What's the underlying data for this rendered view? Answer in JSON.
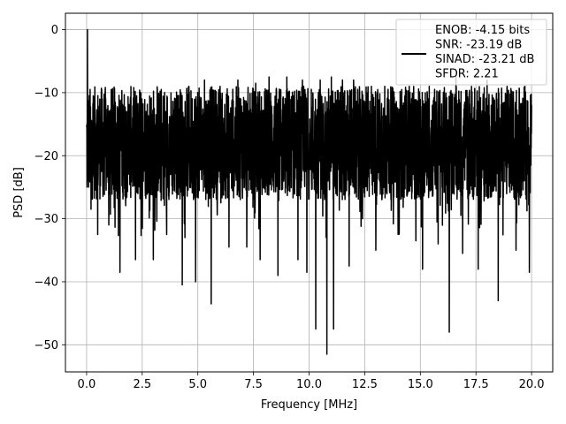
{
  "chart_data": {
    "type": "line",
    "xlabel": "Frequency [MHz]",
    "ylabel": "PSD [dB]",
    "xlim": [
      -0.95,
      20.95
    ],
    "ylim": [
      -54.3,
      2.6
    ],
    "xticks": [
      0.0,
      2.5,
      5.0,
      7.5,
      10.0,
      12.5,
      15.0,
      17.5,
      20.0
    ],
    "xtick_labels": [
      "0.0",
      "2.5",
      "5.0",
      "7.5",
      "10.0",
      "12.5",
      "15.0",
      "17.5",
      "20.0"
    ],
    "yticks": [
      0,
      -10,
      -20,
      -30,
      -40,
      -50
    ],
    "ytick_labels": [
      "0",
      "−10",
      "−20",
      "−30",
      "−40",
      "−50"
    ],
    "grid": true,
    "legend_position": "top-right",
    "line_color": "#000000",
    "series": [
      {
        "name": "ENOB: -4.15 bits\nSNR: -23.19 dB\nSINAD: -23.21 dB\nSFDR: 2.21",
        "x_range": [
          0,
          20
        ],
        "noise_floor_approx": -18,
        "points": [
          [
            0.0,
            -15.5
          ],
          [
            0.02,
            -25.0
          ],
          [
            0.04,
            0.0
          ],
          [
            0.06,
            -24.0
          ],
          [
            0.1,
            -12.0
          ],
          [
            0.2,
            -28.5
          ],
          [
            0.3,
            -10.5
          ],
          [
            0.5,
            -32.5
          ],
          [
            0.7,
            -11.0
          ],
          [
            1.0,
            -31.0
          ],
          [
            1.3,
            -12.0
          ],
          [
            1.5,
            -38.5
          ],
          [
            1.8,
            -13.0
          ],
          [
            2.2,
            -36.5
          ],
          [
            2.5,
            -13.0
          ],
          [
            3.0,
            -36.5
          ],
          [
            3.3,
            -12.0
          ],
          [
            3.6,
            -32.5
          ],
          [
            4.0,
            -11.0
          ],
          [
            4.3,
            -40.5
          ],
          [
            4.6,
            -9.0
          ],
          [
            4.9,
            -40.0
          ],
          [
            5.3,
            -8.0
          ],
          [
            5.6,
            -43.5
          ],
          [
            6.0,
            -9.0
          ],
          [
            6.4,
            -34.5
          ],
          [
            6.8,
            -8.0
          ],
          [
            7.2,
            -34.5
          ],
          [
            7.6,
            -8.5
          ],
          [
            7.8,
            -36.5
          ],
          [
            8.2,
            -7.5
          ],
          [
            8.6,
            -39.0
          ],
          [
            9.0,
            -7.5
          ],
          [
            9.5,
            -36.5
          ],
          [
            9.7,
            -8.0
          ],
          [
            9.9,
            -38.5
          ],
          [
            10.3,
            -47.5
          ],
          [
            10.5,
            -8.0
          ],
          [
            10.8,
            -51.5
          ],
          [
            11.0,
            -7.5
          ],
          [
            11.1,
            -47.5
          ],
          [
            11.5,
            -8.0
          ],
          [
            11.8,
            -37.5
          ],
          [
            12.0,
            -8.0
          ],
          [
            12.4,
            -30.0
          ],
          [
            12.8,
            -9.0
          ],
          [
            13.0,
            -35.0
          ],
          [
            13.4,
            -9.0
          ],
          [
            14.0,
            -32.5
          ],
          [
            14.5,
            -9.0
          ],
          [
            14.8,
            -33.5
          ],
          [
            15.1,
            -38.0
          ],
          [
            15.4,
            -9.0
          ],
          [
            15.8,
            -34.0
          ],
          [
            16.3,
            -48.0
          ],
          [
            16.6,
            -7.5
          ],
          [
            16.9,
            -35.5
          ],
          [
            17.3,
            -9.0
          ],
          [
            17.6,
            -38.0
          ],
          [
            18.0,
            -8.0
          ],
          [
            18.5,
            -43.0
          ],
          [
            18.9,
            -9.0
          ],
          [
            19.3,
            -35.0
          ],
          [
            19.7,
            -9.0
          ],
          [
            19.9,
            -38.5
          ],
          [
            20.0,
            -12.0
          ]
        ]
      }
    ]
  }
}
